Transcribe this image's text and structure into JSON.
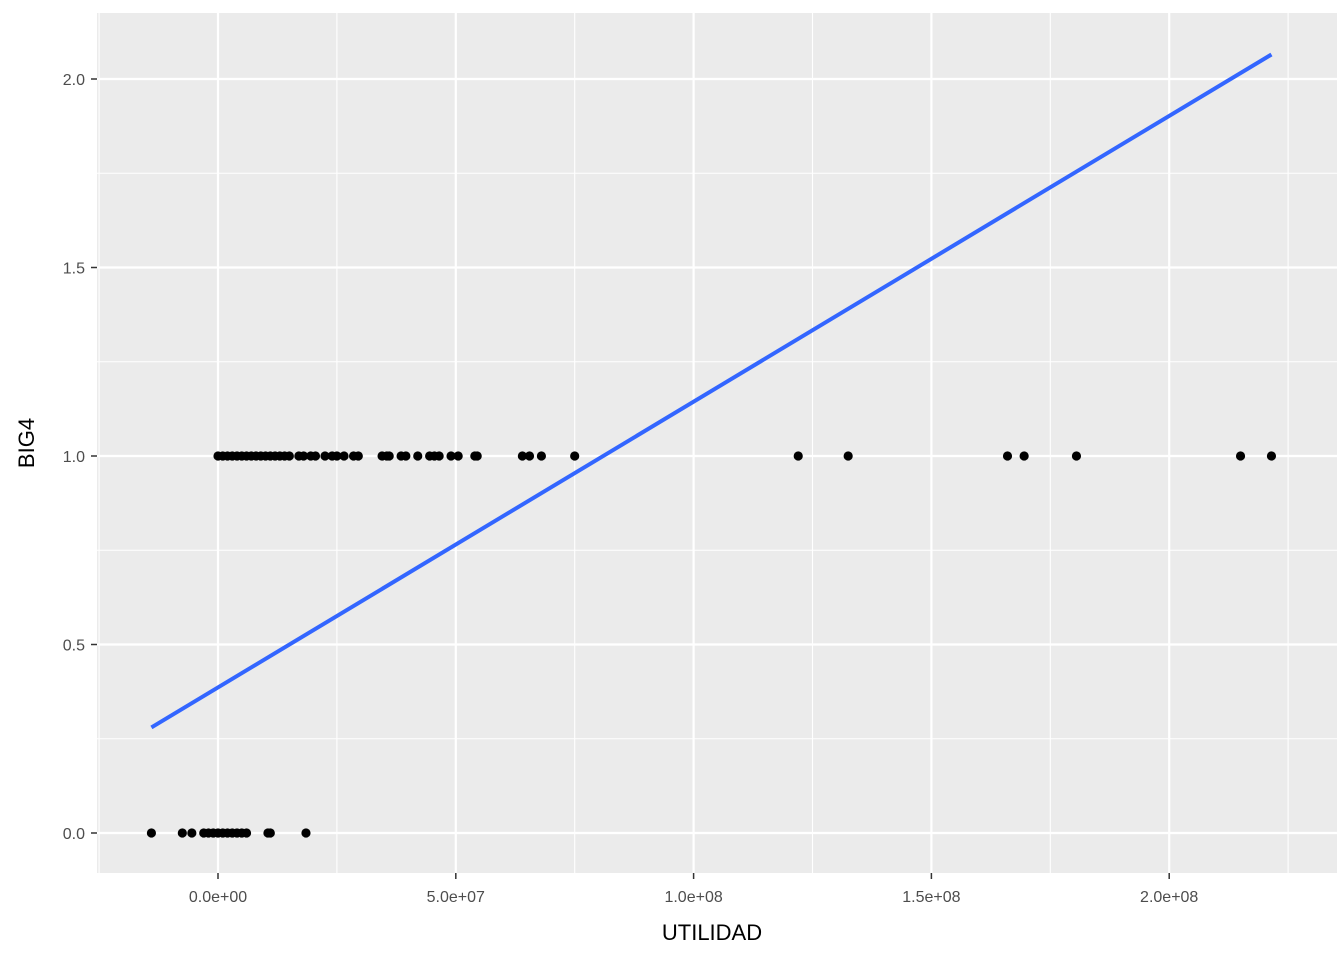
{
  "chart_data": {
    "type": "scatter",
    "xlabel": "UTILIDAD",
    "ylabel": "BIG4",
    "xlim": [
      -26000000,
      229000000
    ],
    "ylim": [
      -0.1,
      2.15
    ],
    "x_ticks": [
      0,
      50000000,
      100000000,
      150000000,
      200000000
    ],
    "x_tick_labels": [
      "0.0e+00",
      "5.0e+07",
      "1.0e+08",
      "1.5e+08",
      "2.0e+08"
    ],
    "y_ticks": [
      0,
      0.5,
      1,
      1.5,
      2
    ],
    "y_tick_labels": [
      "0.0",
      "0.5",
      "1.0",
      "1.5",
      "2.0"
    ],
    "grid": true,
    "legend": "none",
    "colors": {
      "panel": "#ebebeb",
      "grid": "#ffffff",
      "points": "#000000",
      "fit_line": "#3366ff"
    },
    "points": [
      {
        "x": -14000000,
        "y": 0
      },
      {
        "x": -7500000,
        "y": 0
      },
      {
        "x": -5500000,
        "y": 0
      },
      {
        "x": -3000000,
        "y": 0
      },
      {
        "x": -2000000,
        "y": 0
      },
      {
        "x": -1000000,
        "y": 0
      },
      {
        "x": 0,
        "y": 0
      },
      {
        "x": 1000000,
        "y": 0
      },
      {
        "x": 2000000,
        "y": 0
      },
      {
        "x": 3000000,
        "y": 0
      },
      {
        "x": 4000000,
        "y": 0
      },
      {
        "x": 5000000,
        "y": 0
      },
      {
        "x": 6000000,
        "y": 0
      },
      {
        "x": 10500000,
        "y": 0
      },
      {
        "x": 11000000,
        "y": 0
      },
      {
        "x": 18500000,
        "y": 0
      },
      {
        "x": 0,
        "y": 1
      },
      {
        "x": 1000000,
        "y": 1
      },
      {
        "x": 2000000,
        "y": 1
      },
      {
        "x": 3000000,
        "y": 1
      },
      {
        "x": 4000000,
        "y": 1
      },
      {
        "x": 5000000,
        "y": 1
      },
      {
        "x": 6000000,
        "y": 1
      },
      {
        "x": 7000000,
        "y": 1
      },
      {
        "x": 8000000,
        "y": 1
      },
      {
        "x": 9000000,
        "y": 1
      },
      {
        "x": 10000000,
        "y": 1
      },
      {
        "x": 11000000,
        "y": 1
      },
      {
        "x": 12000000,
        "y": 1
      },
      {
        "x": 13000000,
        "y": 1
      },
      {
        "x": 14000000,
        "y": 1
      },
      {
        "x": 15000000,
        "y": 1
      },
      {
        "x": 17000000,
        "y": 1
      },
      {
        "x": 18000000,
        "y": 1
      },
      {
        "x": 19500000,
        "y": 1
      },
      {
        "x": 20500000,
        "y": 1
      },
      {
        "x": 22500000,
        "y": 1
      },
      {
        "x": 24000000,
        "y": 1
      },
      {
        "x": 25000000,
        "y": 1
      },
      {
        "x": 26500000,
        "y": 1
      },
      {
        "x": 28500000,
        "y": 1
      },
      {
        "x": 29500000,
        "y": 1
      },
      {
        "x": 34500000,
        "y": 1
      },
      {
        "x": 35500000,
        "y": 1
      },
      {
        "x": 36000000,
        "y": 1
      },
      {
        "x": 38500000,
        "y": 1
      },
      {
        "x": 39500000,
        "y": 1
      },
      {
        "x": 42000000,
        "y": 1
      },
      {
        "x": 44500000,
        "y": 1
      },
      {
        "x": 45500000,
        "y": 1
      },
      {
        "x": 46500000,
        "y": 1
      },
      {
        "x": 49000000,
        "y": 1
      },
      {
        "x": 50500000,
        "y": 1
      },
      {
        "x": 54000000,
        "y": 1
      },
      {
        "x": 54500000,
        "y": 1
      },
      {
        "x": 64000000,
        "y": 1
      },
      {
        "x": 65500000,
        "y": 1
      },
      {
        "x": 68000000,
        "y": 1
      },
      {
        "x": 75000000,
        "y": 1
      },
      {
        "x": 122000000,
        "y": 1
      },
      {
        "x": 132500000,
        "y": 1
      },
      {
        "x": 166000000,
        "y": 1
      },
      {
        "x": 169500000,
        "y": 1
      },
      {
        "x": 180500000,
        "y": 1
      },
      {
        "x": 215000000,
        "y": 1
      },
      {
        "x": 221500000,
        "y": 1
      }
    ],
    "fit_line": [
      {
        "x": -14000000,
        "y": 0.28
      },
      {
        "x": 221500000,
        "y": 2.065
      }
    ]
  }
}
